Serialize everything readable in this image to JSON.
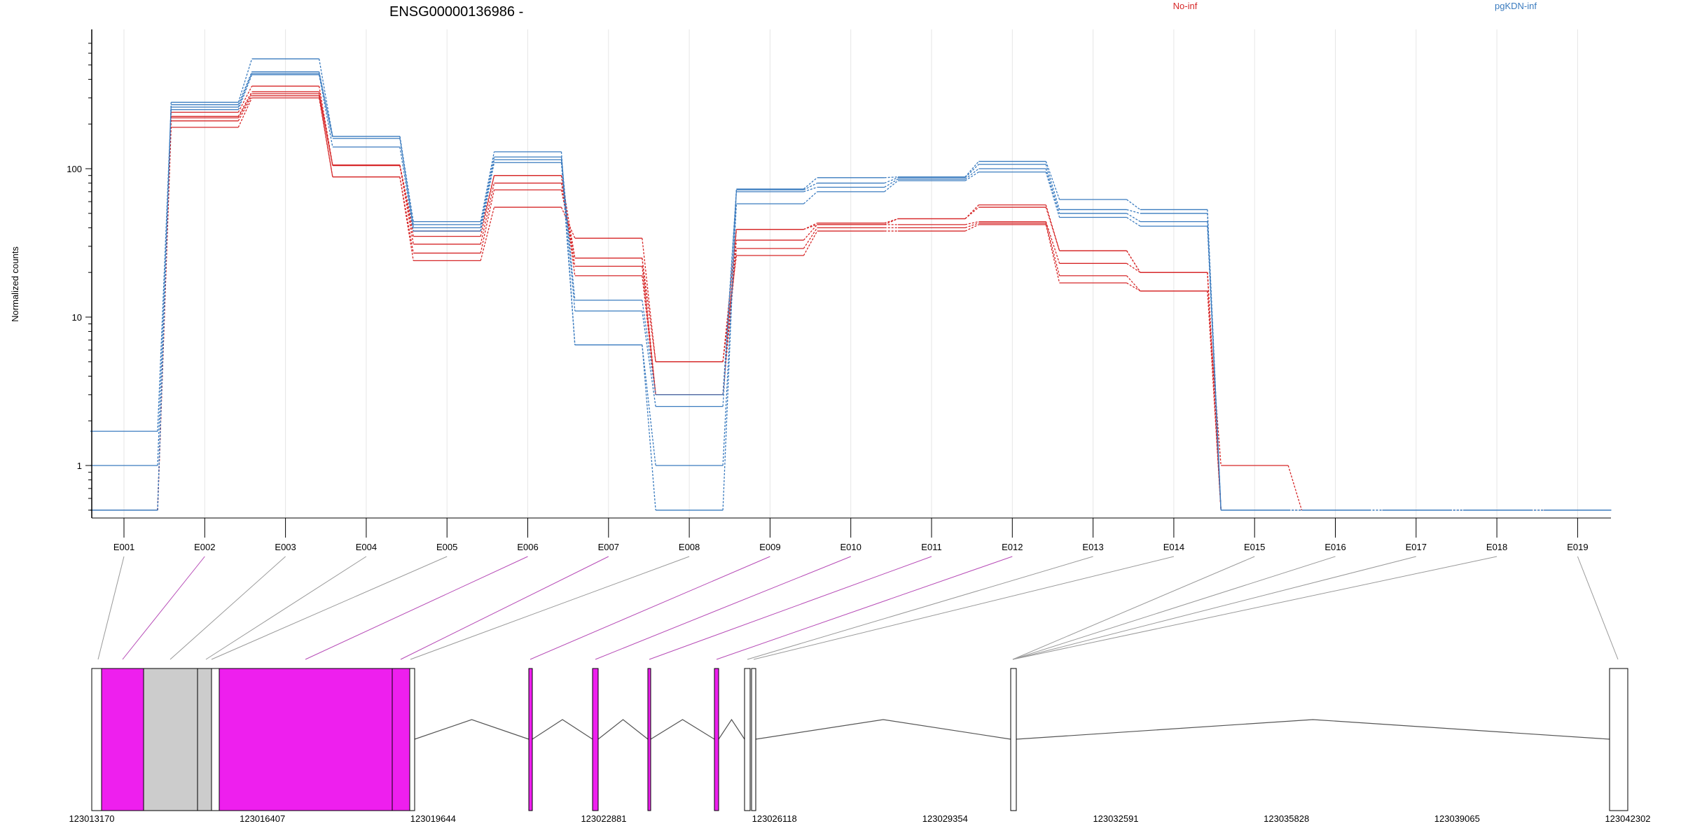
{
  "chart_data": {
    "type": "line",
    "title": "ENSG00000136986 -",
    "ylabel": "Normalized counts",
    "yscale": "log",
    "yticks": [
      {
        "value": 1,
        "label": "1"
      },
      {
        "value": 10,
        "label": "10"
      },
      {
        "value": 100,
        "label": "100"
      }
    ],
    "ylim": [
      0.5,
      700
    ],
    "grid": "vertical lines at exon centers",
    "legend": [
      {
        "name": "No-inf",
        "color": "#d62728"
      },
      {
        "name": "pgKDN-inf",
        "color": "#3a7bbf"
      }
    ],
    "categories": [
      "E001",
      "E002",
      "E003",
      "E004",
      "E005",
      "E006",
      "E007",
      "E008",
      "E009",
      "E010",
      "E011",
      "E012",
      "E013",
      "E014",
      "E015",
      "E016",
      "E017",
      "E018",
      "E019"
    ],
    "series": [
      {
        "group": "No-inf",
        "color": "#d62728",
        "values": [
          0.5,
          190,
          300,
          88,
          24,
          55,
          34,
          5,
          26,
          38,
          38,
          42,
          17,
          15,
          1,
          0.5,
          0.5,
          0.5,
          0.5
        ]
      },
      {
        "group": "No-inf",
        "color": "#d62728",
        "values": [
          0.5,
          210,
          310,
          88,
          27,
          72,
          25,
          3,
          29,
          40,
          40,
          43,
          19,
          15,
          0.5,
          0.5,
          0.5,
          0.5,
          0.5
        ]
      },
      {
        "group": "No-inf",
        "color": "#d62728",
        "values": [
          0.5,
          220,
          320,
          105,
          31,
          80,
          22,
          3,
          33,
          42,
          42,
          44,
          23,
          20,
          0.5,
          0.5,
          0.5,
          0.5,
          0.5
        ]
      },
      {
        "group": "No-inf",
        "color": "#d62728",
        "values": [
          0.5,
          225,
          330,
          105,
          35,
          90,
          19,
          3,
          39,
          42,
          46,
          55,
          28,
          20,
          0.5,
          0.5,
          0.5,
          0.5,
          0.5
        ]
      },
      {
        "group": "No-inf",
        "color": "#d62728",
        "values": [
          0.5,
          240,
          360,
          106,
          38,
          90,
          25,
          5,
          39,
          43,
          46,
          57,
          28,
          20,
          0.5,
          0.5,
          0.5,
          0.5,
          0.5
        ]
      },
      {
        "group": "pgKDN-inf",
        "color": "#3a7bbf",
        "values": [
          1,
          250,
          430,
          140,
          38,
          110,
          6.5,
          1,
          58,
          70,
          83,
          95,
          47,
          41,
          0.5,
          0.5,
          0.5,
          0.5,
          0.5
        ]
      },
      {
        "group": "pgKDN-inf",
        "color": "#3a7bbf",
        "values": [
          1.7,
          260,
          440,
          160,
          40,
          115,
          11,
          2.5,
          70,
          75,
          85,
          100,
          50,
          44,
          0.5,
          0.5,
          0.5,
          0.5,
          0.5
        ]
      },
      {
        "group": "pgKDN-inf",
        "color": "#3a7bbf",
        "values": [
          0.5,
          270,
          450,
          165,
          42,
          120,
          13,
          3,
          72,
          80,
          87,
          107,
          53,
          50,
          0.5,
          0.5,
          0.5,
          0.5,
          0.5
        ]
      },
      {
        "group": "pgKDN-inf",
        "color": "#3a7bbf",
        "values": [
          0.5,
          280,
          550,
          165,
          44,
          130,
          6.5,
          0.5,
          73,
          87,
          88,
          112,
          62,
          53,
          0.5,
          0.5,
          0.5,
          0.5,
          0.5
        ]
      }
    ],
    "gene_model": {
      "coordinate_ticks": [
        "123013170",
        "123016407",
        "123019644",
        "123022881",
        "123026118",
        "123029354",
        "123032591",
        "123035828",
        "123039065",
        "123042302"
      ],
      "range": [
        123013170,
        123042302
      ],
      "feature_colors": {
        "coding": "#ee1fee",
        "untranslated": "#cccccc",
        "outline": "#ffffff"
      }
    }
  }
}
